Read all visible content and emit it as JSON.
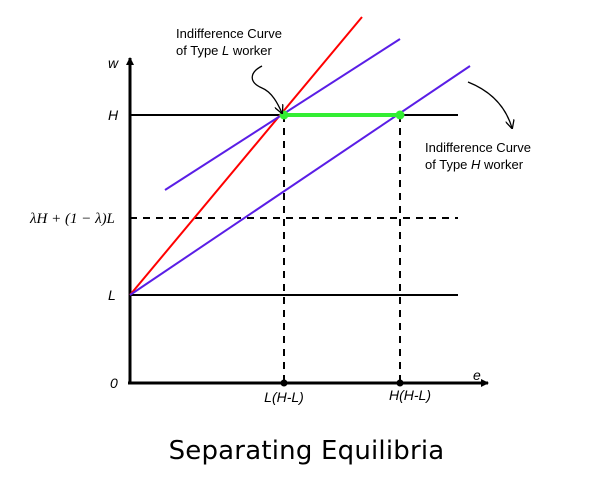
{
  "diagram": {
    "axis_y_label": "w",
    "axis_x_label": "e",
    "y_tick_H": "H",
    "y_tick_pooled": "λH + (1 − λ)L",
    "y_tick_L": "L",
    "origin_label": "0",
    "x_tick_LHL": "L(H-L)",
    "x_tick_HHL": "H(H-L)",
    "annotation_L": {
      "line1": "Indifference Curve",
      "line2_pre": "of Type ",
      "line2_type": "L",
      "line2_post": " worker"
    },
    "annotation_H": {
      "line1": "Indifference Curve",
      "line2_pre": "of Type ",
      "line2_type": "H",
      "line2_post": " worker"
    },
    "colors": {
      "wage_schedule": "#ff0000",
      "indifference_curves": "#5a1ee6",
      "separating_segment": "#33ee33",
      "axes": "#000000"
    }
  },
  "caption": "Separating Equilibria"
}
